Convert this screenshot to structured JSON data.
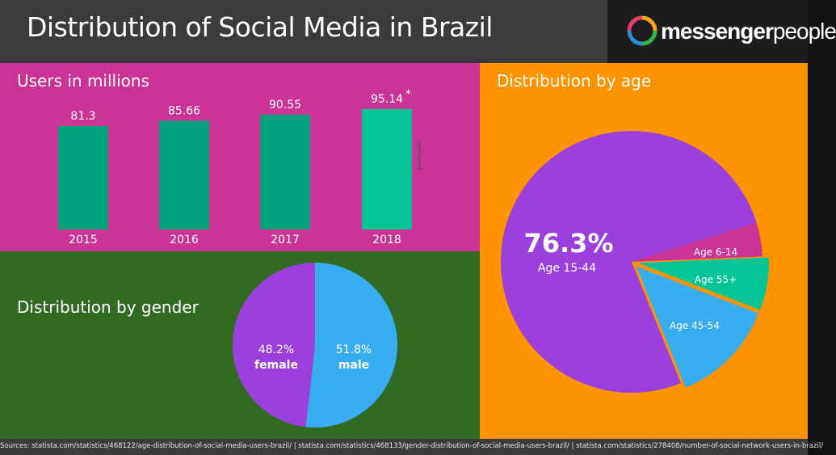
{
  "header": {
    "title": "Distribution of Social Media in Brazil",
    "logo_bold": "messenger",
    "logo_light": "people"
  },
  "colors": {
    "header_bg": "#3b3b3d",
    "users_panel_bg": "#cc3396",
    "gender_panel_bg": "#316b23",
    "age_panel_bg": "#ff9300",
    "bar": "#00a07b",
    "bar_estimated": "#04c596",
    "female": "#9b40dc",
    "male": "#38adf0",
    "age_15_44": "#9b40dc",
    "age_6_14": "#cc3396",
    "age_55_plus": "#04c596",
    "age_45_54": "#38adf0"
  },
  "users": {
    "title": "Users in millions",
    "estimate_marker": "*",
    "estimate_note": "estimated",
    "chart_data": {
      "type": "bar",
      "categories": [
        "2015",
        "2016",
        "2017",
        "2018"
      ],
      "values": [
        81.3,
        85.66,
        90.55,
        95.14
      ],
      "value_labels": [
        "81.3",
        "85.66",
        "90.55",
        "95.14"
      ],
      "estimated": [
        false,
        false,
        false,
        true
      ],
      "ylabel": "",
      "xlabel": "",
      "grid": false
    }
  },
  "gender": {
    "title": "Distribution by gender",
    "chart_data": {
      "type": "pie",
      "slices": [
        {
          "label": "female",
          "value": 48.2,
          "value_label": "48.2%"
        },
        {
          "label": "male",
          "value": 51.8,
          "value_label": "51.8%"
        }
      ]
    }
  },
  "age": {
    "title": "Distribution by age",
    "chart_data": {
      "type": "pie",
      "slices": [
        {
          "label": "Age 15-44",
          "value": 76.3,
          "value_label": "76.3%"
        },
        {
          "label": "Age 6-14",
          "value": 4.2
        },
        {
          "label": "Age 55+",
          "value": 6.5
        },
        {
          "label": "Age 45-54",
          "value": 13.0
        }
      ]
    }
  },
  "footer": {
    "sources": "Sources: statista.com/statistics/468122/age-distribution-of-social-media-users-brazil/  |  statista.com/statistics/468133/gender-distribution-of-social-media-users-brazil/  |  statista.com/statistics/278408/number-of-social-network-users-in-brazil/"
  }
}
